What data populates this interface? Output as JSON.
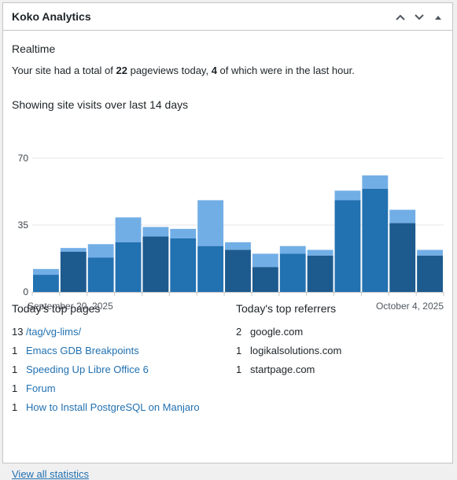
{
  "widget": {
    "title": "Koko Analytics",
    "actions": [
      {
        "icon": "chevron-up-icon"
      },
      {
        "icon": "chevron-down-icon"
      },
      {
        "icon": "toggle-arrow-icon"
      }
    ]
  },
  "realtime": {
    "heading": "Realtime",
    "text_prefix": "Your site had a total of ",
    "pageviews_today": "22",
    "text_middle": " pageviews today, ",
    "pageviews_last_hour": "4",
    "text_suffix": " of which were in the last hour."
  },
  "chart_heading": "Showing site visits over last 14 days",
  "chart_data": {
    "type": "bar",
    "stacked": true,
    "x": [
      "2025-09-20",
      "2025-09-21",
      "2025-09-22",
      "2025-09-23",
      "2025-09-24",
      "2025-09-25",
      "2025-09-26",
      "2025-09-27",
      "2025-09-28",
      "2025-09-29",
      "2025-09-30",
      "2025-10-01",
      "2025-10-02",
      "2025-10-03",
      "2025-10-04"
    ],
    "series": [
      {
        "color": "#2271b1",
        "values": [
          9,
          21,
          18,
          26,
          29,
          28,
          24,
          22,
          13,
          20,
          19,
          48,
          54,
          36,
          19
        ]
      },
      {
        "color": "#72aee6",
        "values": [
          3,
          2,
          7,
          13,
          5,
          5,
          24,
          4,
          7,
          4,
          3,
          5,
          7,
          7,
          3
        ]
      }
    ],
    "x_tick_labels": [
      "September 20, 2025",
      "October 4, 2025"
    ],
    "y_ticks": [
      0,
      35,
      70
    ],
    "ylim": [
      0,
      70
    ],
    "grid": true
  },
  "top_pages": {
    "heading": "Today's top pages",
    "items": [
      {
        "count": "13",
        "label": "/tag/vg-lims/"
      },
      {
        "count": "1",
        "label": "Emacs GDB Breakpoints"
      },
      {
        "count": "1",
        "label": "Speeding Up Libre Office 6"
      },
      {
        "count": "1",
        "label": "Forum"
      },
      {
        "count": "1",
        "label": "How to Install PostgreSQL on Manjaro"
      }
    ]
  },
  "top_referrers": {
    "heading": "Today's top referrers",
    "items": [
      {
        "count": "2",
        "label": "google.com"
      },
      {
        "count": "1",
        "label": "logikalsolutions.com"
      },
      {
        "count": "1",
        "label": "startpage.com"
      }
    ]
  },
  "view_all_label": "View all statistics"
}
